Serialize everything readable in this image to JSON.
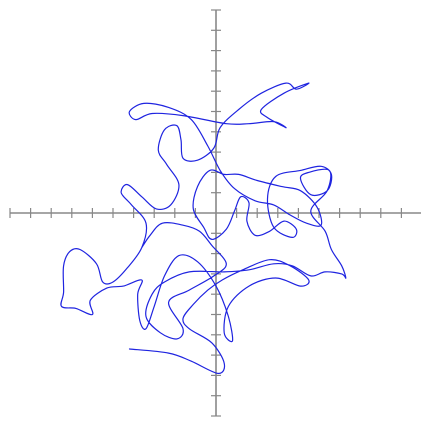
{
  "chart_data": {
    "type": "line",
    "title": "",
    "xlabel": "",
    "ylabel": "",
    "xlim": [
      -10,
      10
    ],
    "ylim": [
      -10,
      10
    ],
    "x_tick_step": 1,
    "y_tick_step": 1,
    "grid": false,
    "legend": "none",
    "tick_labels": "none",
    "axes_color": "#888888",
    "series": [
      {
        "color": "#1f24e0",
        "points": [
          [
            -4.2,
            -6.7
          ],
          [
            -2.3,
            -6.9
          ],
          [
            -1.2,
            -7.3
          ],
          [
            0.1,
            -7.9
          ],
          [
            0.4,
            -7.4
          ],
          [
            -0.2,
            -6.4
          ],
          [
            -1.3,
            -5.7
          ],
          [
            -1.6,
            -5.2
          ],
          [
            -1.1,
            -4.5
          ],
          [
            -0.4,
            -3.8
          ],
          [
            0.3,
            -3.3
          ],
          [
            1.3,
            -2.8
          ],
          [
            2.6,
            -2.3
          ],
          [
            3.6,
            -2.6
          ],
          [
            4.5,
            -3.3
          ],
          [
            4.1,
            -3.6
          ],
          [
            2.9,
            -3.2
          ],
          [
            1.6,
            -3.6
          ],
          [
            0.6,
            -4.6
          ],
          [
            0.4,
            -5.9
          ],
          [
            0.8,
            -6.3
          ],
          [
            0.6,
            -5.1
          ],
          [
            0.0,
            -3.6
          ],
          [
            -0.9,
            -2.4
          ],
          [
            -1.8,
            -2.1
          ],
          [
            -2.5,
            -3.1
          ],
          [
            -3.0,
            -4.6
          ],
          [
            -3.4,
            -5.7
          ],
          [
            -3.7,
            -5.3
          ],
          [
            -3.8,
            -4.0
          ],
          [
            -3.6,
            -3.3
          ],
          [
            -4.5,
            -3.6
          ],
          [
            -5.3,
            -3.7
          ],
          [
            -6.1,
            -4.3
          ],
          [
            -6.0,
            -5.0
          ],
          [
            -6.8,
            -4.7
          ],
          [
            -7.5,
            -4.6
          ],
          [
            -7.4,
            -3.9
          ],
          [
            -7.4,
            -2.6
          ],
          [
            -7.1,
            -1.9
          ],
          [
            -6.6,
            -1.8
          ],
          [
            -5.8,
            -2.5
          ],
          [
            -5.5,
            -3.4
          ],
          [
            -5.0,
            -3.4
          ],
          [
            -4.3,
            -2.7
          ],
          [
            -3.6,
            -1.7
          ],
          [
            -3.4,
            -0.5
          ],
          [
            -4.1,
            0.4
          ],
          [
            -4.6,
            1.0
          ],
          [
            -4.3,
            1.4
          ],
          [
            -3.6,
            0.8
          ],
          [
            -2.9,
            0.2
          ],
          [
            -2.2,
            0.4
          ],
          [
            -1.8,
            1.4
          ],
          [
            -2.4,
            2.4
          ],
          [
            -2.8,
            3.1
          ],
          [
            -2.5,
            4.1
          ],
          [
            -1.9,
            4.3
          ],
          [
            -1.7,
            3.6
          ],
          [
            -1.6,
            2.7
          ],
          [
            -0.9,
            2.6
          ],
          [
            -0.1,
            3.2
          ],
          [
            0.2,
            4.2
          ],
          [
            1.1,
            5.1
          ],
          [
            2.2,
            5.9
          ],
          [
            3.4,
            6.4
          ],
          [
            3.9,
            6.1
          ],
          [
            4.5,
            6.4
          ],
          [
            3.3,
            5.9
          ],
          [
            2.2,
            5.1
          ],
          [
            2.5,
            4.7
          ],
          [
            3.4,
            4.2
          ],
          [
            2.8,
            4.5
          ],
          [
            1.6,
            4.4
          ],
          [
            0.5,
            4.4
          ],
          [
            -1.6,
            4.8
          ],
          [
            -3.1,
            4.9
          ],
          [
            -3.9,
            4.6
          ],
          [
            -4.2,
            5.0
          ],
          [
            -3.5,
            5.4
          ],
          [
            -2.3,
            5.2
          ],
          [
            -1.2,
            4.6
          ],
          [
            -0.4,
            3.3
          ],
          [
            0.2,
            2.1
          ],
          [
            0.9,
            1.2
          ],
          [
            1.9,
            0.6
          ],
          [
            2.8,
            0.4
          ],
          [
            3.6,
            -0.1
          ],
          [
            4.4,
            -0.5
          ],
          [
            5.1,
            -0.6
          ],
          [
            4.9,
            0.3
          ],
          [
            4.1,
            1.1
          ],
          [
            3.2,
            1.3
          ],
          [
            2.0,
            1.6
          ],
          [
            1.1,
            1.9
          ],
          [
            0.4,
            1.9
          ],
          [
            -0.3,
            2.1
          ],
          [
            -0.9,
            1.3
          ],
          [
            -1.1,
            0.2
          ],
          [
            -0.6,
            -0.7
          ],
          [
            -0.2,
            -1.3
          ],
          [
            0.5,
            -0.8
          ],
          [
            0.9,
            0.1
          ],
          [
            1.2,
            0.8
          ],
          [
            1.6,
            0.5
          ],
          [
            1.5,
            -0.4
          ],
          [
            1.9,
            -1.1
          ],
          [
            2.6,
            -0.9
          ],
          [
            3.3,
            -0.4
          ],
          [
            3.9,
            -0.8
          ],
          [
            3.7,
            -1.2
          ],
          [
            2.8,
            -0.7
          ],
          [
            2.5,
            0.7
          ],
          [
            2.9,
            1.8
          ],
          [
            4.1,
            2.1
          ],
          [
            5.1,
            2.3
          ],
          [
            5.6,
            1.9
          ],
          [
            5.4,
            1.1
          ],
          [
            4.6,
            0.9
          ],
          [
            4.1,
            1.7
          ],
          [
            4.5,
            2.0
          ],
          [
            5.5,
            2.1
          ],
          [
            5.4,
            1.1
          ],
          [
            4.6,
            0.1
          ],
          [
            5.3,
            -0.9
          ],
          [
            5.6,
            -1.8
          ],
          [
            6.1,
            -2.6
          ],
          [
            6.3,
            -3.2
          ],
          [
            6.1,
            -3.0
          ],
          [
            5.3,
            -2.9
          ],
          [
            4.6,
            -3.1
          ],
          [
            3.7,
            -2.6
          ],
          [
            2.8,
            -2.5
          ],
          [
            1.6,
            -2.8
          ],
          [
            0.4,
            -2.9
          ],
          [
            -1.3,
            -2.9
          ],
          [
            -2.5,
            -3.4
          ],
          [
            -3.1,
            -4.0
          ],
          [
            -3.4,
            -5.1
          ],
          [
            -2.7,
            -5.9
          ],
          [
            -1.9,
            -6.2
          ],
          [
            -1.6,
            -5.7
          ],
          [
            -2.3,
            -4.4
          ],
          [
            -1.3,
            -3.8
          ],
          [
            -0.1,
            -3.1
          ],
          [
            0.5,
            -2.5
          ],
          [
            -0.2,
            -1.6
          ],
          [
            -0.8,
            -0.9
          ],
          [
            -1.6,
            -0.6
          ],
          [
            -2.6,
            -0.5
          ],
          [
            -3.2,
            -1.1
          ],
          [
            -3.6,
            -1.7
          ]
        ]
      }
    ]
  }
}
